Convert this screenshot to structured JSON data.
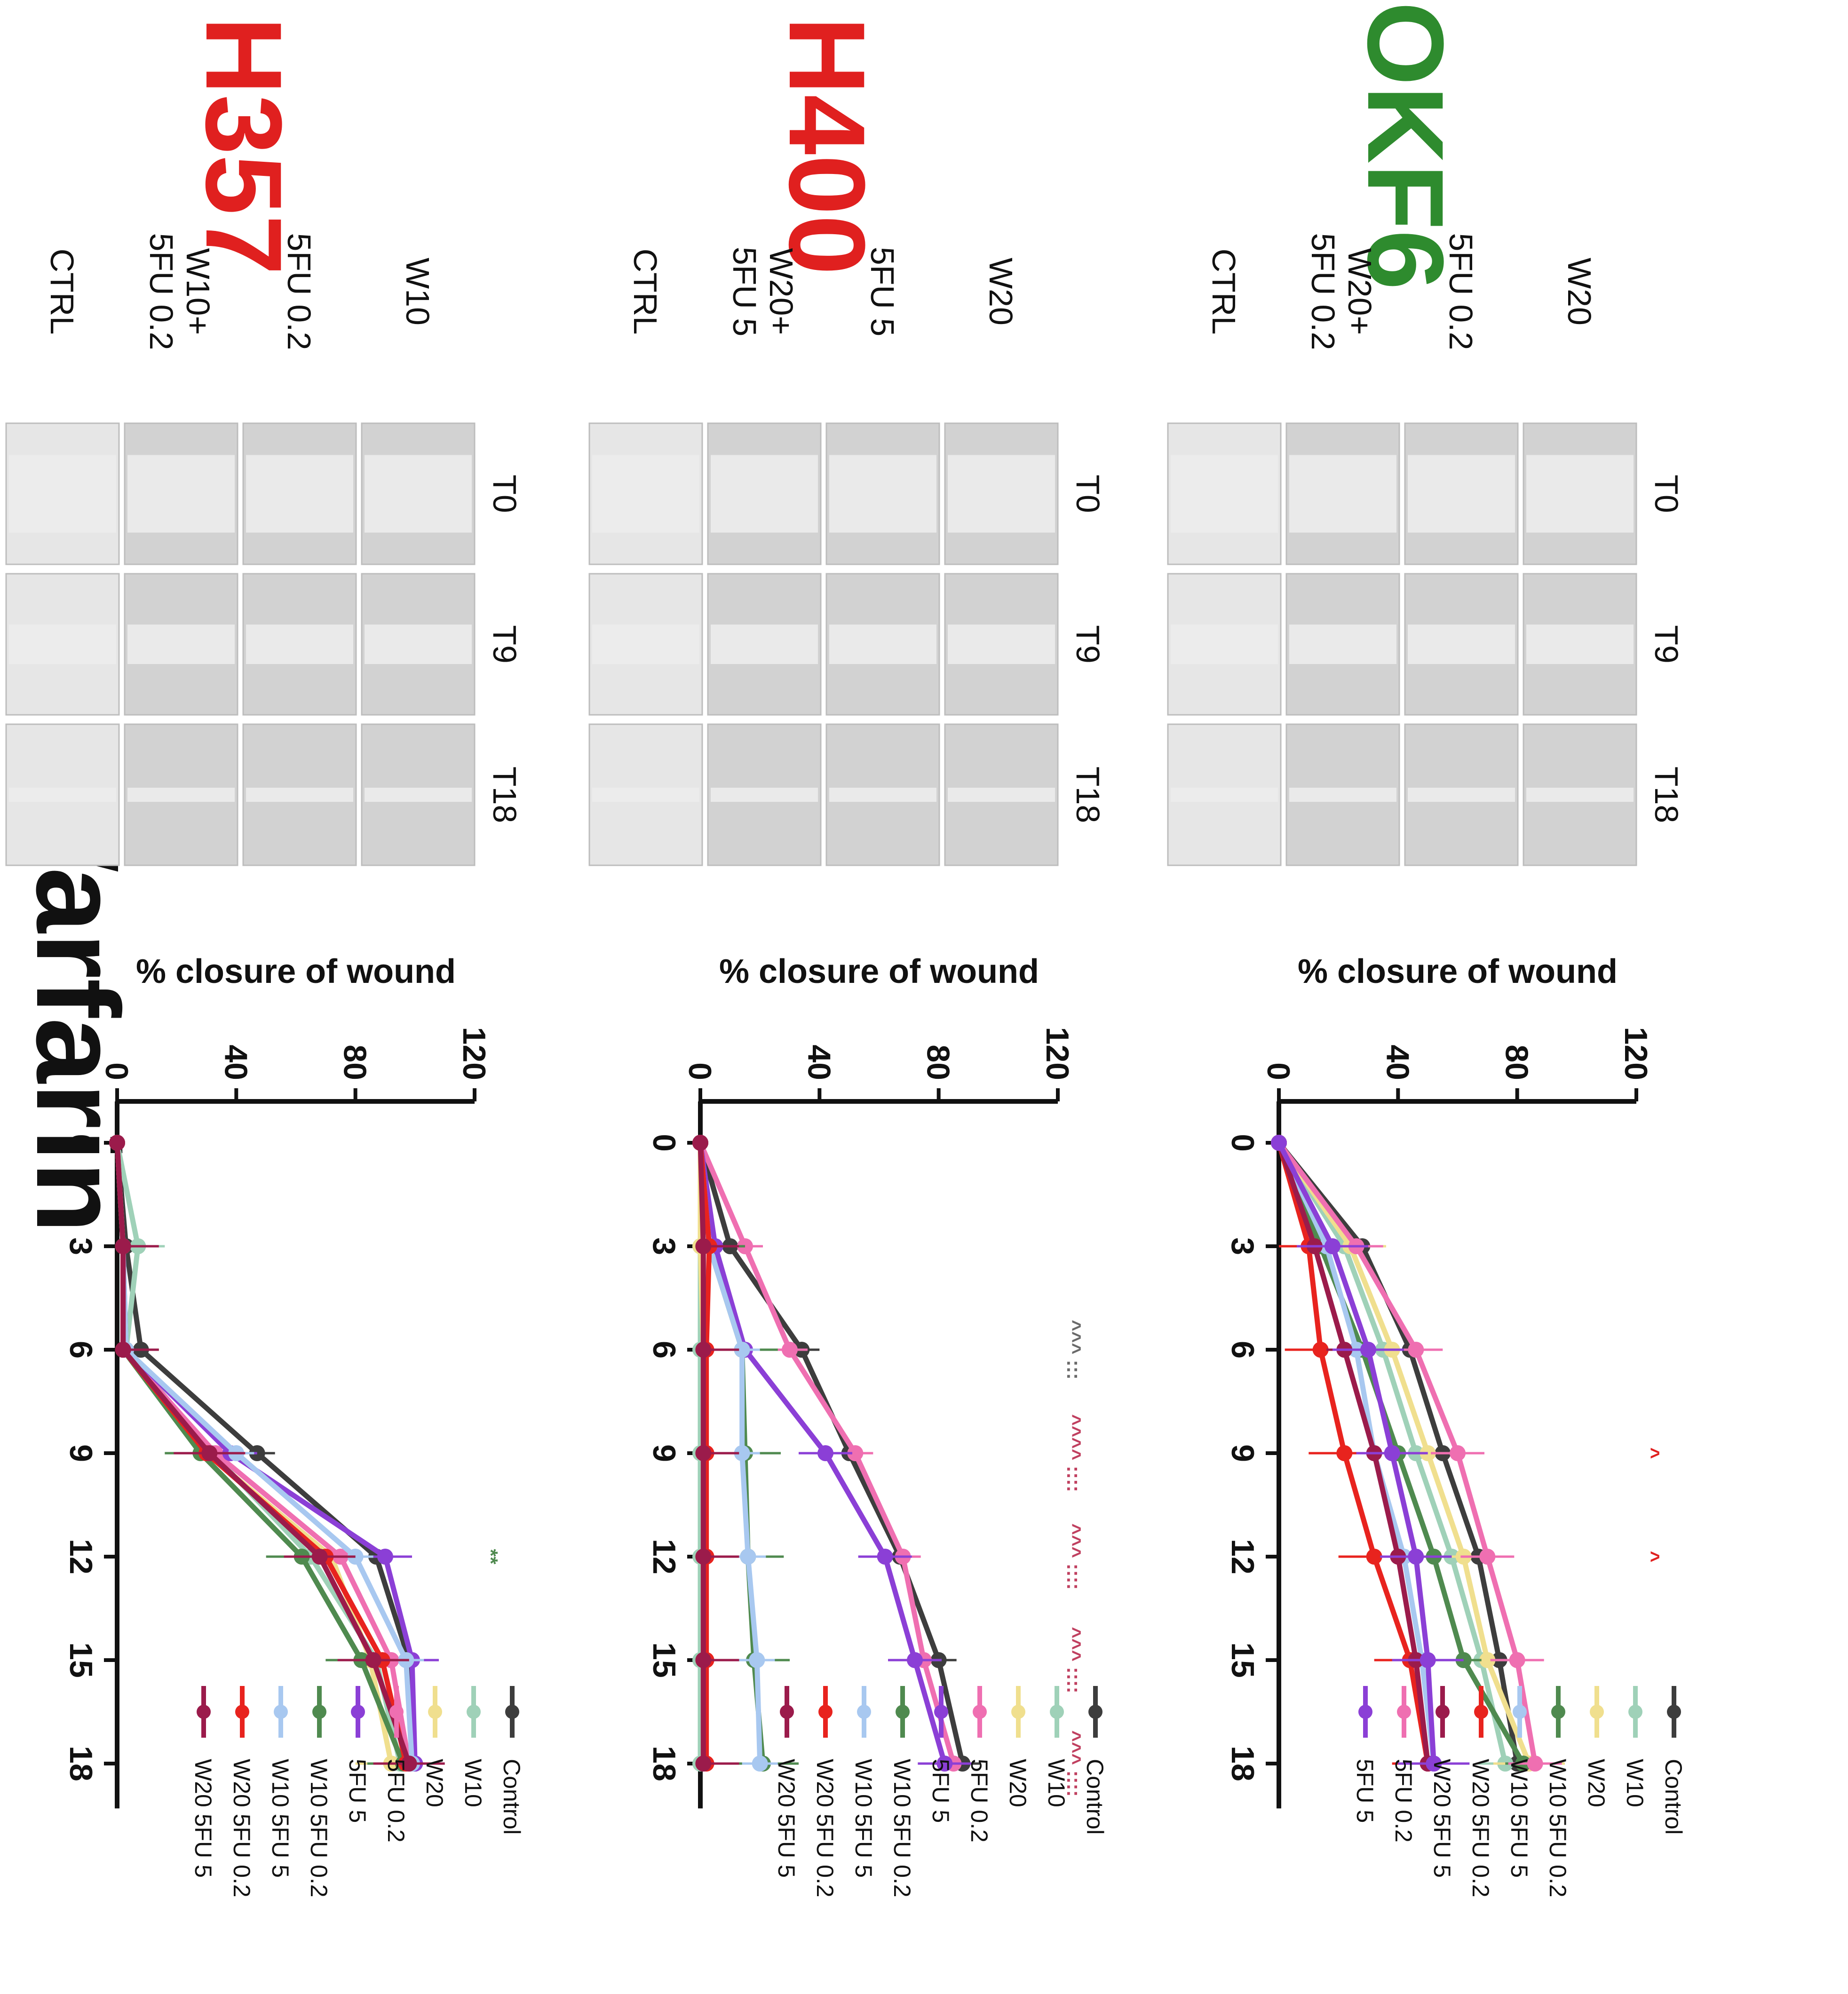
{
  "figure": {
    "title": "Warfarin",
    "time_labels": [
      "T0",
      "T9",
      "T18"
    ]
  },
  "panels": [
    {
      "cell_line": "H357",
      "color": "#e0201f",
      "conditions": [
        "W10",
        "5FU 0.2",
        "W10+\n5FU 0.2",
        "CTRL"
      ],
      "legend": [
        "Control",
        "W10",
        "W20",
        "5FU 0.2",
        "5FU 5",
        "W10 5FU 0.2",
        "W10 5FU 5",
        "W20 5FU 0.2",
        "W20 5FU 5"
      ],
      "significance": [
        {
          "x": 12,
          "text": "**",
          "color": "#4f8a4f"
        }
      ]
    },
    {
      "cell_line": "H400",
      "color": "#e0201f",
      "conditions": [
        "W20",
        "5FU 5",
        "W20+\n5FU 5",
        "CTRL"
      ],
      "legend": [
        "Control",
        "W10",
        "W20",
        "5FU 0.2",
        "5FU 5",
        "W10 5FU 0.2",
        "W10 5FU 5",
        "W20 5FU 0.2",
        "W20 5FU 5"
      ],
      "significance": [
        {
          "x": 6,
          "text": "^^^ :::",
          "color": "#6a6a6a"
        },
        {
          "x": 9,
          "text": "^^^^ ::::",
          "color": "#c04060"
        },
        {
          "x": 12,
          "text": "^^^ ::::",
          "color": "#c04060"
        },
        {
          "x": 15,
          "text": "^^^ ::::",
          "color": "#c04060"
        },
        {
          "x": 18,
          "text": "^^^ ::::",
          "color": "#c04060"
        }
      ]
    },
    {
      "cell_line": "OKF6",
      "color": "#2e8b2e",
      "conditions": [
        "W20",
        "5FU 0.2",
        "W20+\n5FU 0.2",
        "CTRL"
      ],
      "legend": [
        "Control",
        "W10",
        "W20",
        "W10 5FU 0.2",
        "W10 5FU 5",
        "W20 5FU 0.2",
        "W20 5FU 5",
        "5FU 0.2",
        "5FU 5"
      ],
      "significance": [
        {
          "x": 9,
          "text": "^",
          "color": "#e0201f"
        },
        {
          "x": 12,
          "text": "^",
          "color": "#e0201f"
        }
      ]
    }
  ],
  "series_colors": {
    "Control": "#3d3d3d",
    "W10": "#9fd1b8",
    "W20": "#f0df8e",
    "5FU 0.2": "#ef6fb1",
    "5FU 5": "#8b3fd6",
    "W10 5FU 0.2": "#4f8a4f",
    "W10 5FU 5": "#a8c8f0",
    "W20 5FU 0.2": "#e8231e",
    "W20 5FU 5": "#9b1b4b"
  },
  "chart_data": [
    {
      "type": "line",
      "title": "H357",
      "xlabel": "",
      "ylabel": "% closure of wound",
      "x": [
        0,
        3,
        6,
        9,
        12,
        15,
        18
      ],
      "xlim": [
        -1.5,
        19.5
      ],
      "ylim": [
        0,
        120
      ],
      "yticks": [
        0,
        40,
        80,
        120
      ],
      "xticks": [
        0,
        3,
        6,
        9,
        12,
        15,
        18
      ],
      "series": [
        {
          "name": "Control",
          "values": [
            0,
            3,
            8,
            47,
            87,
            98,
            100
          ]
        },
        {
          "name": "W10",
          "values": [
            0,
            7,
            3,
            32,
            65,
            87,
            95
          ]
        },
        {
          "name": "W20",
          "values": [
            0,
            2,
            2,
            30,
            72,
            85,
            92
          ]
        },
        {
          "name": "5FU 0.2",
          "values": [
            0,
            2,
            2,
            33,
            75,
            92,
            98
          ]
        },
        {
          "name": "5FU 5",
          "values": [
            0,
            2,
            3,
            38,
            90,
            99,
            100
          ]
        },
        {
          "name": "W10 5FU 0.2",
          "values": [
            0,
            2,
            2,
            28,
            62,
            82,
            96
          ]
        },
        {
          "name": "W10 5FU 5",
          "values": [
            0,
            2,
            3,
            40,
            80,
            97,
            99
          ]
        },
        {
          "name": "W20 5FU 0.2",
          "values": [
            0,
            2,
            2,
            30,
            70,
            89,
            97
          ]
        },
        {
          "name": "W20 5FU 5",
          "values": [
            0,
            2,
            2,
            31,
            68,
            86,
            98
          ]
        }
      ]
    },
    {
      "type": "line",
      "title": "H400",
      "xlabel": "",
      "ylabel": "% closure of wound",
      "x": [
        0,
        3,
        6,
        9,
        12,
        15,
        18
      ],
      "xlim": [
        -1.5,
        19.5
      ],
      "ylim": [
        0,
        120
      ],
      "yticks": [
        0,
        40,
        80,
        120
      ],
      "xticks": [
        0,
        3,
        6,
        9,
        12,
        15,
        18
      ],
      "series": [
        {
          "name": "Control",
          "values": [
            0,
            10,
            34,
            50,
            67,
            80,
            88
          ]
        },
        {
          "name": "W10",
          "values": [
            0,
            0,
            0,
            0,
            0,
            0,
            0
          ]
        },
        {
          "name": "W20",
          "values": [
            0,
            0,
            1,
            1,
            1,
            1,
            1
          ]
        },
        {
          "name": "5FU 0.2",
          "values": [
            0,
            15,
            30,
            52,
            68,
            75,
            85
          ]
        },
        {
          "name": "5FU 5",
          "values": [
            0,
            5,
            15,
            42,
            62,
            72,
            82
          ]
        },
        {
          "name": "W10 5FU 0.2",
          "values": [
            0,
            3,
            14,
            15,
            16,
            18,
            21
          ]
        },
        {
          "name": "W10 5FU 5",
          "values": [
            0,
            3,
            14,
            14,
            16,
            19,
            20
          ]
        },
        {
          "name": "W20 5FU 0.2",
          "values": [
            0,
            3,
            2,
            2,
            2,
            2,
            2
          ]
        },
        {
          "name": "W20 5FU 5",
          "values": [
            0,
            1,
            1,
            1,
            1,
            1,
            1
          ]
        }
      ]
    },
    {
      "type": "line",
      "title": "OKF6",
      "xlabel": "",
      "ylabel": "% closure of wound",
      "x": [
        0,
        3,
        6,
        9,
        12,
        15,
        18
      ],
      "xlim": [
        -1.5,
        19.5
      ],
      "ylim": [
        0,
        120
      ],
      "yticks": [
        0,
        40,
        80,
        120
      ],
      "xticks": [
        0,
        3,
        6,
        9,
        12,
        15,
        18
      ],
      "series": [
        {
          "name": "Control",
          "values": [
            0,
            28,
            44,
            55,
            67,
            74,
            80
          ]
        },
        {
          "name": "W10",
          "values": [
            0,
            22,
            35,
            46,
            58,
            68,
            76
          ]
        },
        {
          "name": "W20",
          "values": [
            0,
            24,
            38,
            50,
            62,
            70,
            84
          ]
        },
        {
          "name": "W10 5FU 0.2",
          "values": [
            0,
            14,
            28,
            40,
            52,
            62,
            82
          ]
        },
        {
          "name": "W10 5FU 5",
          "values": [
            0,
            16,
            26,
            32,
            42,
            48,
            52
          ]
        },
        {
          "name": "W20 5FU 0.2",
          "values": [
            0,
            10,
            14,
            22,
            32,
            44,
            50
          ]
        },
        {
          "name": "W20 5FU 5",
          "values": [
            0,
            12,
            22,
            32,
            40,
            46,
            50
          ]
        },
        {
          "name": "5FU 0.2",
          "values": [
            0,
            26,
            46,
            60,
            70,
            80,
            86
          ]
        },
        {
          "name": "5FU 5",
          "values": [
            0,
            18,
            30,
            38,
            46,
            50,
            52
          ]
        }
      ]
    }
  ]
}
